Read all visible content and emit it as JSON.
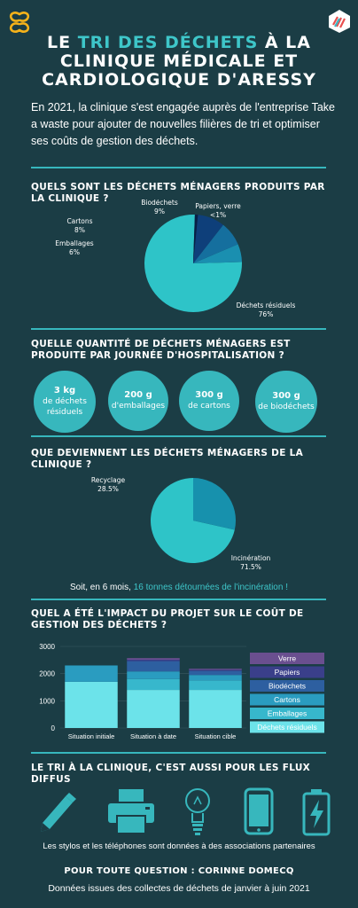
{
  "header": {
    "title_pre": "LE ",
    "title_highlight": "TRI DES DÉCHETS",
    "title_post": " À LA",
    "title_line2": "CLINIQUE MÉDICALE ET",
    "title_line3": "CARDIOLOGIQUE D'ARESSY",
    "intro": "En 2021, la clinique s'est engagée auprès de l'entreprise Take a waste pour ajouter de nouvelles filières de tri et optimiser ses coûts de gestion des déchets."
  },
  "section1": {
    "question": "QUELS SONT LES DÉCHETS MÉNAGERS PRODUITS PAR LA CLINIQUE ?"
  },
  "section2": {
    "question": "QUELLE QUANTITÉ DE DÉCHETS MÉNAGERS EST PRODUITE PAR JOURNÉE D'HOSPITALISATION ?",
    "items": [
      {
        "amount": "3 kg",
        "label": "de déchets résiduels"
      },
      {
        "amount": "200 g",
        "label": "d'emballages"
      },
      {
        "amount": "300 g",
        "label": "de cartons"
      },
      {
        "amount": "300 g",
        "label": "de biodéchets"
      }
    ]
  },
  "section3": {
    "question": "QUE DEVIENNENT LES DÉCHETS MÉNAGERS DE LA CLINIQUE ?",
    "note_pre": "Soit, en 6 mois, ",
    "note_highlight": "16 tonnes détournées de l'incinération !"
  },
  "section4": {
    "question": "QUEL A ÉTÉ L'IMPACT DU PROJET SUR LE COÛT DE GESTION DES DÉCHETS ?"
  },
  "section5": {
    "question": "LE TRI À LA CLINIQUE, C'EST AUSSI POUR LES FLUX DIFFUS",
    "icons": [
      "pen-icon",
      "printer-icon",
      "lightbulb-icon",
      "phone-icon",
      "battery-icon"
    ],
    "caption": "Les stylos et les téléphones sont données à des associations partenaires"
  },
  "footer": {
    "contact": "POUR TOUTE QUESTION : CORINNE DOMECQ",
    "source": "Données issues des collectes de déchets de janvier à juin 2021"
  },
  "colors": {
    "background": "#1b3d45",
    "accent": "#37b7bd",
    "highlight": "#3ec6c9",
    "pie_main": "#2ec4c8",
    "pie_emballages": "#1a8fb0",
    "pie_cartons": "#136c9c",
    "pie_biodechets": "#0d3f7a",
    "pie_papiers": "#0a2a5a"
  },
  "chart_data": [
    {
      "type": "pie",
      "slices": [
        {
          "label": "Déchets résiduels",
          "value": 76,
          "display": "76%",
          "color": "#2ec4c8"
        },
        {
          "label": "Emballages",
          "value": 6,
          "display": "6%",
          "color": "#1a8fb0"
        },
        {
          "label": "Cartons",
          "value": 8,
          "display": "8%",
          "color": "#156f9e"
        },
        {
          "label": "Biodéchets",
          "value": 9,
          "display": "9%",
          "color": "#0e3f7a"
        },
        {
          "label": "Papiers, verre",
          "value": 1,
          "display": "<1%",
          "color": "#071f45"
        }
      ]
    },
    {
      "type": "pie",
      "slices": [
        {
          "label": "Incinération",
          "value": 71.5,
          "display": "71.5%",
          "color": "#2ec4c8"
        },
        {
          "label": "Recyclage",
          "value": 28.5,
          "display": "28.5%",
          "color": "#1791ad"
        }
      ]
    },
    {
      "type": "bar",
      "stacked": true,
      "categories": [
        "Situation initiale",
        "Situation à date",
        "Situation cible"
      ],
      "ylim": [
        0,
        3000
      ],
      "yticks": [
        0,
        1000,
        2000,
        3000
      ],
      "grid": true,
      "legend": "right",
      "series": [
        {
          "name": "Déchets résiduels",
          "color": "#6ce3ea",
          "values": [
            1700,
            1400,
            1400
          ]
        },
        {
          "name": "Emballages",
          "color": "#37b7cc",
          "values": [
            0,
            400,
            350
          ]
        },
        {
          "name": "Cartons",
          "color": "#2a9cc0",
          "values": [
            600,
            280,
            200
          ]
        },
        {
          "name": "Biodéchets",
          "color": "#2d5fa0",
          "values": [
            0,
            380,
            150
          ]
        },
        {
          "name": "Papiers",
          "color": "#3a3f8a",
          "values": [
            0,
            50,
            40
          ]
        },
        {
          "name": "Verre",
          "color": "#6a4f8f",
          "values": [
            0,
            60,
            40
          ]
        }
      ]
    }
  ]
}
